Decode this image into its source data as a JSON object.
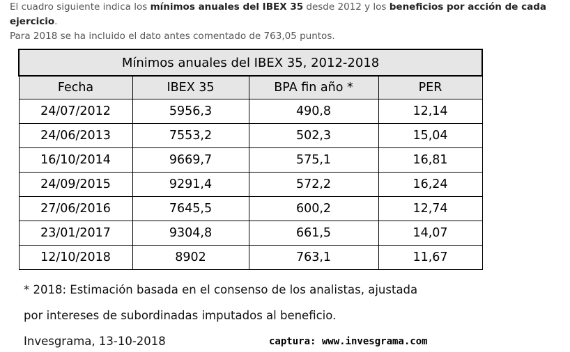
{
  "intro": {
    "p1": "El cuadro siguiente indica los ",
    "b1": "mínimos anuales del IBEX 35",
    "p2": " desde 2012 y los ",
    "b2": "beneficios por acción de cada ejercicio",
    "p3": ".",
    "line2": "Para 2018 se ha incluido el dato antes comentado de 763,05 puntos."
  },
  "table": {
    "title": "Mínimos anuales del IBEX 35, 2012-2018",
    "headers": [
      "Fecha",
      "IBEX 35",
      "BPA fin año *",
      "PER"
    ],
    "rows": [
      [
        "24/07/2012",
        "5956,3",
        "490,8",
        "12,14"
      ],
      [
        "24/06/2013",
        "7553,2",
        "502,3",
        "15,04"
      ],
      [
        "16/10/2014",
        "9669,7",
        "575,1",
        "16,81"
      ],
      [
        "24/09/2015",
        "9291,4",
        "572,2",
        "16,24"
      ],
      [
        "27/06/2016",
        "7645,5",
        "600,2",
        "12,74"
      ],
      [
        "23/01/2017",
        "9304,8",
        "661,5",
        "14,07"
      ],
      [
        "12/10/2018",
        "8902",
        "763,1",
        "11,67"
      ]
    ]
  },
  "notes": {
    "line1": "* 2018: Estimación basada en el consenso de los analistas, ajustada",
    "line2": "por intereses de subordinadas imputados al beneficio.",
    "line3": "Invesgrama, 13-10-2018"
  },
  "caption": "captura: www.invesgrama.com"
}
